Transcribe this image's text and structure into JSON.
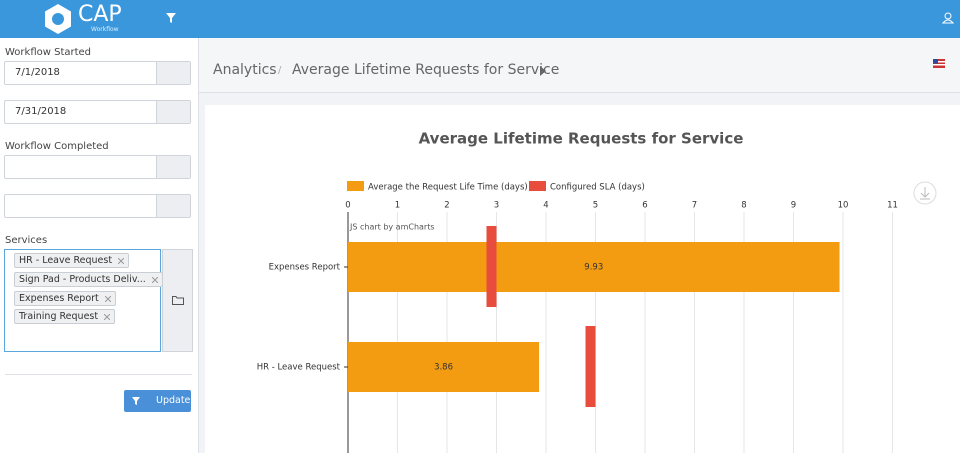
{
  "header": {
    "logo": "CAP",
    "logo_sub": "Workflow"
  },
  "sidebar": {
    "workflow_started_label": "Workflow Started",
    "started_from": "7/1/2018",
    "started_to": "7/31/2018",
    "workflow_completed_label": "Workflow Completed",
    "services_label": "Services",
    "services": [
      "HR - Leave Request",
      "Sign Pad - Products Deliv...",
      "Expenses Report",
      "Training Request"
    ],
    "update_button": "Update"
  },
  "breadcrumb": {
    "items": [
      "Analytics",
      "Average Lifetime Requests for Service"
    ],
    "separator": "/"
  },
  "chart_data": {
    "type": "bar",
    "orientation": "horizontal",
    "title": "Average Lifetime Requests for Service",
    "categories": [
      "Expenses Report",
      "HR - Leave Request"
    ],
    "series": [
      {
        "name": "Average the Request Life Time (days)",
        "color": "#f39c12",
        "values": [
          9.93,
          3.86
        ]
      },
      {
        "name": "Configured SLA (days)",
        "color": "#e74c3c",
        "values": [
          3,
          5
        ]
      }
    ],
    "xlim": [
      0,
      12
    ],
    "xticks": [
      0,
      1,
      2,
      3,
      4,
      5,
      6,
      7,
      8,
      9,
      10,
      11
    ],
    "grid": true,
    "credit": "JS chart by amCharts"
  }
}
